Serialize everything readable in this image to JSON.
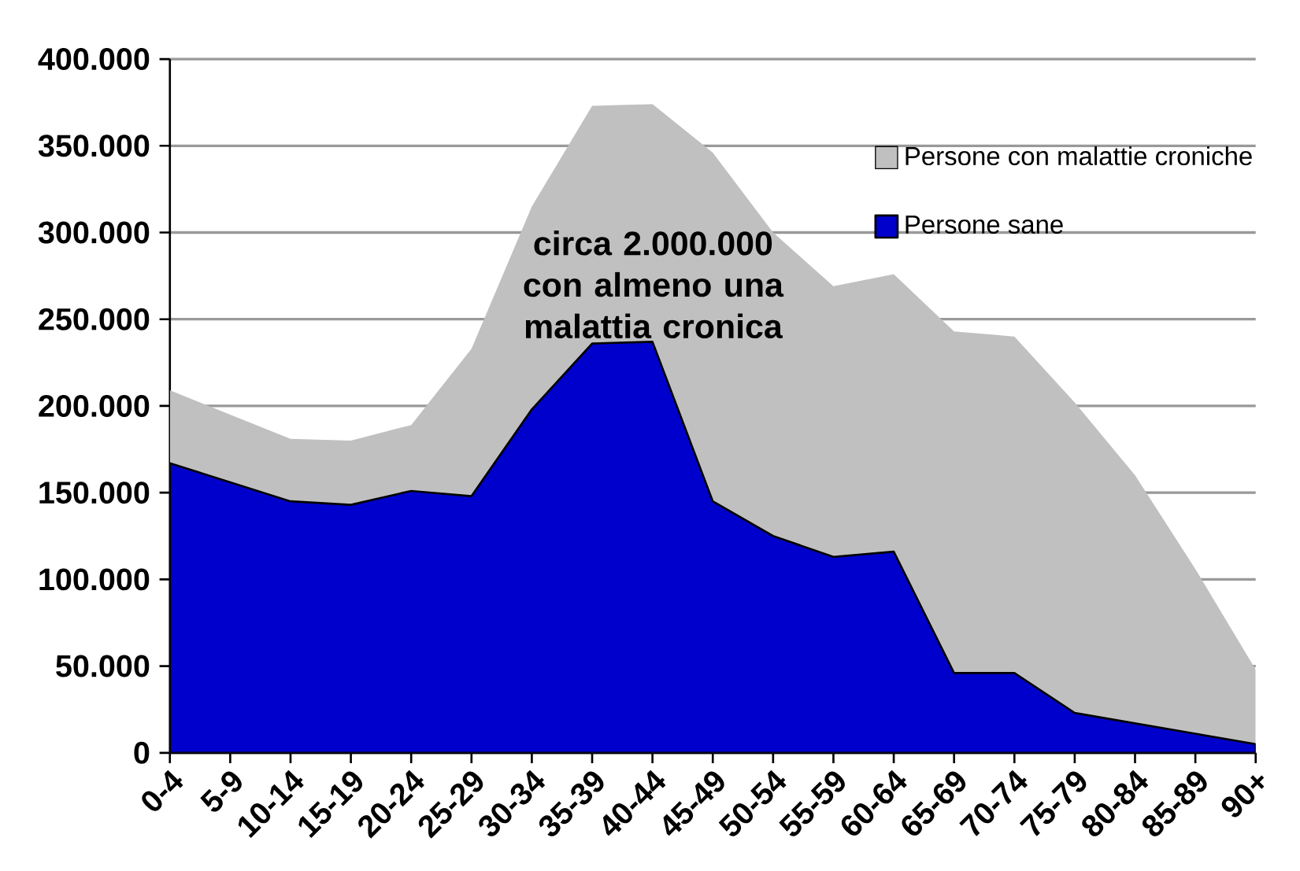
{
  "chart_data": {
    "type": "area",
    "categories": [
      "0-4",
      "5-9",
      "10-14",
      "15-19",
      "20-24",
      "25-29",
      "30-34",
      "35-39",
      "40-44",
      "45-49",
      "50-54",
      "55-59",
      "60-64",
      "65-69",
      "70-74",
      "75-79",
      "80-84",
      "85-89",
      "90+"
    ],
    "series": [
      {
        "name": "Persone con malattie croniche",
        "color": "#c0c0c0",
        "values": [
          209000,
          195000,
          181000,
          180000,
          189000,
          233000,
          315000,
          373000,
          374000,
          346000,
          300000,
          269000,
          276000,
          243000,
          240000,
          202000,
          160000,
          106000,
          48000
        ]
      },
      {
        "name": "Persone sane",
        "color": "#0000cc",
        "values": [
          167000,
          156000,
          145000,
          143000,
          151000,
          148000,
          198000,
          236000,
          237000,
          145000,
          125000,
          113000,
          116000,
          46000,
          46000,
          23000,
          17000,
          11000,
          5000
        ]
      }
    ],
    "ylim": [
      0,
      400000
    ],
    "yticks": [
      {
        "value": 0,
        "label": "0"
      },
      {
        "value": 50000,
        "label": "50.000"
      },
      {
        "value": 100000,
        "label": "100.000"
      },
      {
        "value": 150000,
        "label": "150.000"
      },
      {
        "value": 200000,
        "label": "200.000"
      },
      {
        "value": 250000,
        "label": "250.000"
      },
      {
        "value": 300000,
        "label": "300.000"
      },
      {
        "value": 350000,
        "label": "350.000"
      },
      {
        "value": 400000,
        "label": "400.000"
      }
    ],
    "grid": "y",
    "legend": "top right",
    "annotations": [
      "circa 2.000.000 con almeno una malattia cronica"
    ]
  }
}
